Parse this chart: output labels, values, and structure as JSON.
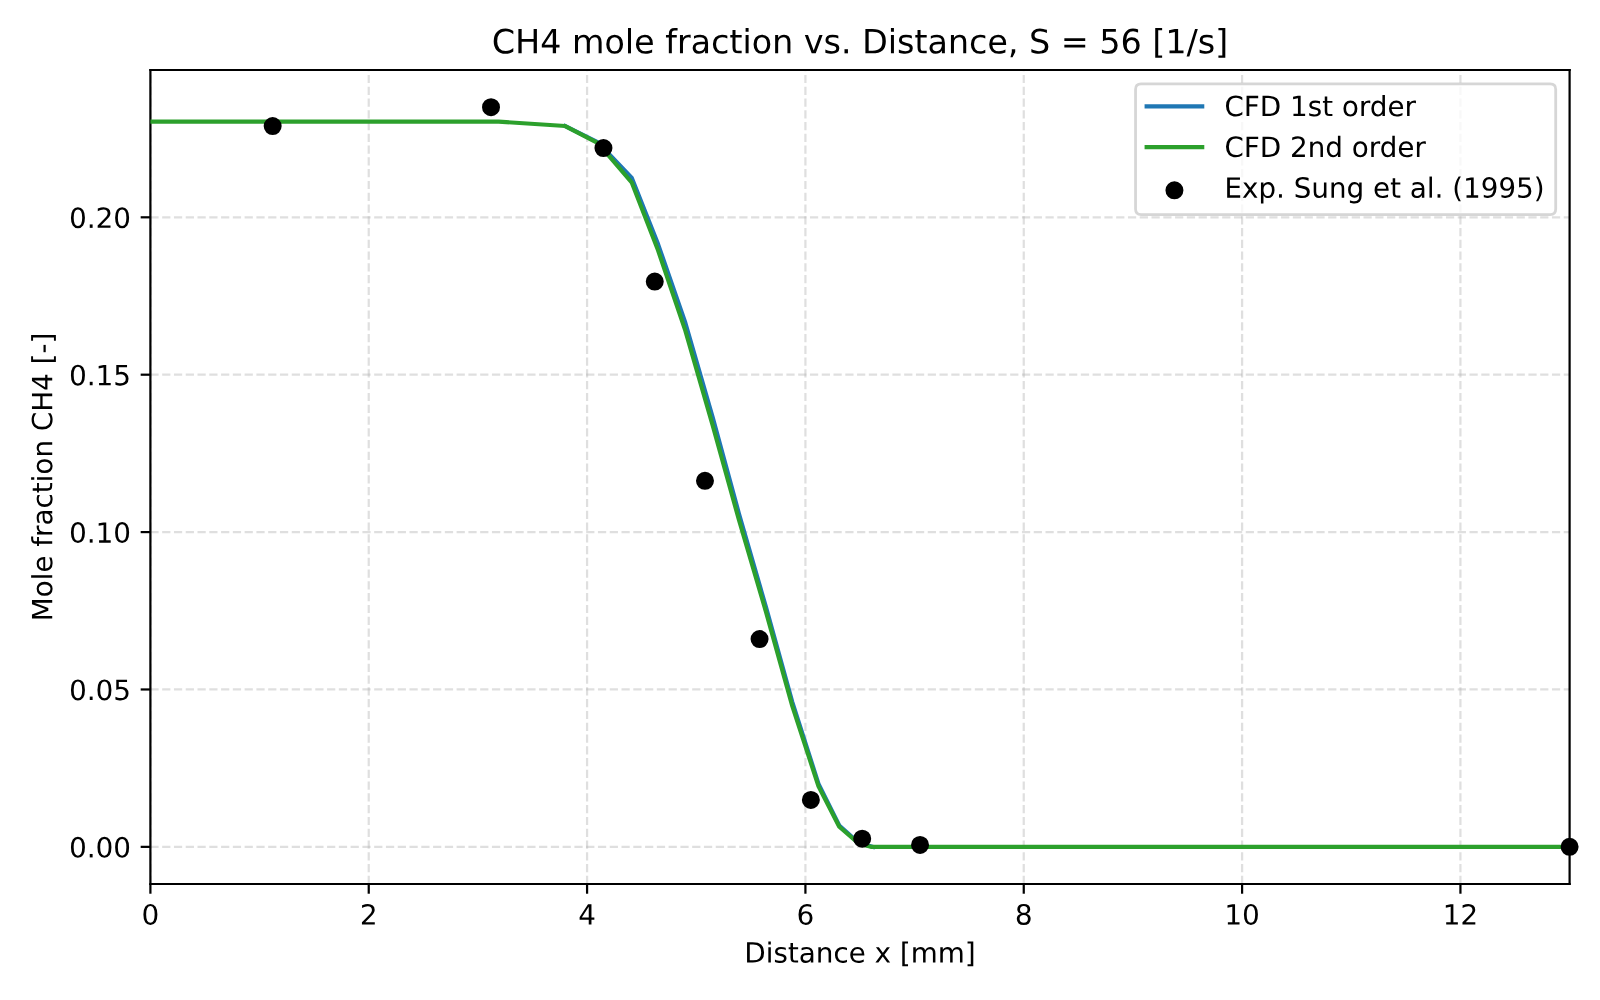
{
  "chart_data": {
    "type": "line",
    "title": "CH4 mole fraction vs. Distance, S = 56 [1/s]",
    "xlabel": "Distance x [mm]",
    "ylabel": "Mole fraction CH4 [-]",
    "xlim": [
      0,
      13
    ],
    "ylim": [
      -0.0118,
      0.2468
    ],
    "xticks": [
      0,
      2,
      4,
      6,
      8,
      10,
      12
    ],
    "yticks": [
      {
        "value": 0,
        "label": "0.00"
      },
      {
        "value": 0.05,
        "label": "0.05"
      },
      {
        "value": 0.1,
        "label": "0.10"
      },
      {
        "value": 0.15,
        "label": "0.15"
      },
      {
        "value": 0.2,
        "label": "0.20"
      }
    ],
    "grid": true,
    "legend": "top right",
    "line_style": "solid",
    "series": [
      {
        "name": "CFD 1st order",
        "color": "#1f77b4",
        "marker": "none",
        "x": [
          3.8,
          4.1,
          4.41,
          4.65,
          4.9,
          5.15,
          5.39,
          5.64,
          5.88,
          6.12,
          6.31,
          6.49,
          6.62
        ],
        "values": [
          0.229,
          0.2238,
          0.2125,
          0.1915,
          0.1665,
          0.1365,
          0.106,
          0.076,
          0.046,
          0.02,
          0.0068,
          0.0012,
          0
        ]
      },
      {
        "name": "CFD 2nd order",
        "color": "#2ca02c",
        "marker": "none",
        "x": [
          0,
          3.19,
          3.8,
          4.1,
          4.41,
          4.65,
          4.9,
          5.15,
          5.39,
          5.64,
          5.88,
          6.12,
          6.31,
          6.49,
          6.6,
          8,
          10,
          13
        ],
        "values": [
          0.2304,
          0.2304,
          0.229,
          0.2236,
          0.211,
          0.1895,
          0.164,
          0.134,
          0.104,
          0.0745,
          0.0447,
          0.0192,
          0.0064,
          0.001,
          0,
          0,
          0,
          0
        ]
      },
      {
        "name": "Exp. Sung et al. (1995)",
        "color": "#000000",
        "type": "scatter",
        "marker": "circle",
        "x": [
          1.12,
          3.12,
          4.15,
          4.62,
          5.08,
          5.58,
          6.05,
          6.52,
          7.05,
          13.0
        ],
        "values": [
          0.229,
          0.235,
          0.222,
          0.1796,
          0.1163,
          0.066,
          0.0149,
          0.0026,
          0.0006,
          0.0
        ]
      }
    ]
  }
}
